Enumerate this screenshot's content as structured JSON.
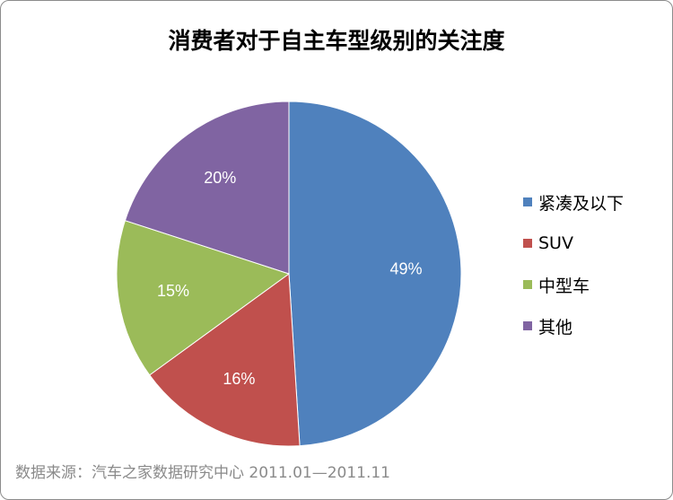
{
  "chart_data": {
    "type": "pie",
    "title": "消费者对于自主车型级别的关注度",
    "slices": [
      {
        "name": "紧凑及以下",
        "value": 49,
        "label": "49%",
        "color": "#4F81BD"
      },
      {
        "name": "SUV",
        "value": 16,
        "label": "16%",
        "color": "#C0504D"
      },
      {
        "name": "中型车",
        "value": 15,
        "label": "15%",
        "color": "#9BBB59"
      },
      {
        "name": "其他",
        "value": 20,
        "label": "20%",
        "color": "#8064A2"
      }
    ],
    "legend_position": "right"
  },
  "source": "数据来源：汽车之家数据研究中心 2011.01—2011.11"
}
